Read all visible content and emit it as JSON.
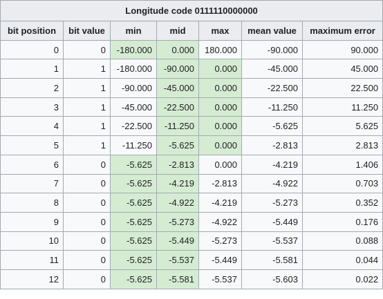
{
  "table": {
    "caption": "Longitude code 0111110000000",
    "headers": [
      "bit position",
      "bit value",
      "min",
      "mid",
      "max",
      "mean value",
      "maximum error"
    ],
    "rows": [
      {
        "cells": [
          "0",
          "0",
          "-180.000",
          "0.000",
          "180.000",
          "-90.000",
          "90.000"
        ],
        "highlight": [
          2,
          3
        ]
      },
      {
        "cells": [
          "1",
          "1",
          "-180.000",
          "-90.000",
          "0.000",
          "-45.000",
          "45.000"
        ],
        "highlight": [
          3,
          4
        ]
      },
      {
        "cells": [
          "2",
          "1",
          "-90.000",
          "-45.000",
          "0.000",
          "-22.500",
          "22.500"
        ],
        "highlight": [
          3,
          4
        ]
      },
      {
        "cells": [
          "3",
          "1",
          "-45.000",
          "-22.500",
          "0.000",
          "-11.250",
          "11.250"
        ],
        "highlight": [
          3,
          4
        ]
      },
      {
        "cells": [
          "4",
          "1",
          "-22.500",
          "-11.250",
          "0.000",
          "-5.625",
          "5.625"
        ],
        "highlight": [
          3,
          4
        ]
      },
      {
        "cells": [
          "5",
          "1",
          "-11.250",
          "-5.625",
          "0.000",
          "-2.813",
          "2.813"
        ],
        "highlight": [
          3,
          4
        ]
      },
      {
        "cells": [
          "6",
          "0",
          "-5.625",
          "-2.813",
          "0.000",
          "-4.219",
          "1.406"
        ],
        "highlight": [
          2,
          3
        ]
      },
      {
        "cells": [
          "7",
          "0",
          "-5.625",
          "-4.219",
          "-2.813",
          "-4.922",
          "0.703"
        ],
        "highlight": [
          2,
          3
        ]
      },
      {
        "cells": [
          "8",
          "0",
          "-5.625",
          "-4.922",
          "-4.219",
          "-5.273",
          "0.352"
        ],
        "highlight": [
          2,
          3
        ]
      },
      {
        "cells": [
          "9",
          "0",
          "-5.625",
          "-5.273",
          "-4.922",
          "-5.449",
          "0.176"
        ],
        "highlight": [
          2,
          3
        ]
      },
      {
        "cells": [
          "10",
          "0",
          "-5.625",
          "-5.449",
          "-5.273",
          "-5.537",
          "0.088"
        ],
        "highlight": [
          2,
          3
        ]
      },
      {
        "cells": [
          "11",
          "0",
          "-5.625",
          "-5.537",
          "-5.449",
          "-5.581",
          "0.044"
        ],
        "highlight": [
          2,
          3
        ]
      },
      {
        "cells": [
          "12",
          "0",
          "-5.625",
          "-5.581",
          "-5.537",
          "-5.603",
          "0.022"
        ],
        "highlight": [
          2,
          3
        ]
      }
    ]
  },
  "colors": {
    "highlight": "#d5ecd3",
    "header_bg": "#eaecf0",
    "cell_bg": "#f8f9fa",
    "border": "#a2a9b1"
  }
}
